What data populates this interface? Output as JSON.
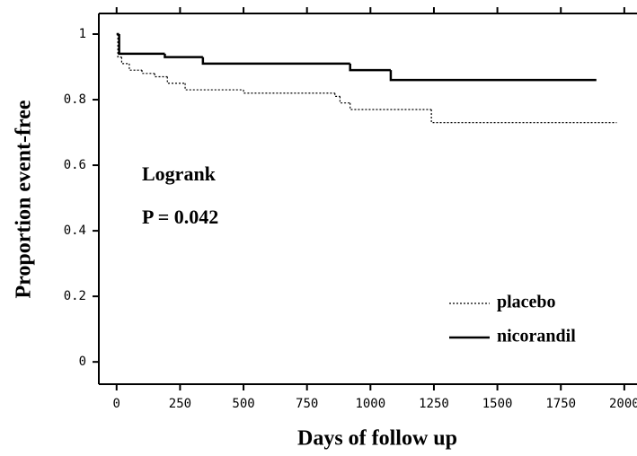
{
  "chart_data": {
    "type": "step",
    "annotations": [
      "Logrank",
      "P = 0.042"
    ],
    "x_label": "Days of follow up",
    "y_label": "Proportion event-free",
    "xlim": [
      -70,
      2050
    ],
    "ylim": [
      -0.068,
      1.063
    ],
    "xticks": [
      0,
      250,
      500,
      750,
      1000,
      1250,
      1500,
      1750,
      2000
    ],
    "yticks": [
      0,
      0.2,
      0.4,
      0.6,
      0.8,
      1
    ],
    "legend": "lower right",
    "series": [
      {
        "name": "placebo",
        "color": "#000000",
        "dashed": true,
        "x": [
          0,
          5,
          20,
          50,
          100,
          150,
          200,
          270,
          500,
          860,
          880,
          920,
          1240,
          1970
        ],
        "values": [
          1,
          0.93,
          0.91,
          0.89,
          0.88,
          0.87,
          0.85,
          0.83,
          0.82,
          0.81,
          0.79,
          0.77,
          0.73,
          0.73
        ]
      },
      {
        "name": "nicorandil",
        "color": "#000000",
        "dashed": false,
        "x": [
          0,
          10,
          190,
          340,
          920,
          1080,
          1890
        ],
        "values": [
          1,
          0.94,
          0.93,
          0.91,
          0.89,
          0.86,
          0.86
        ]
      }
    ]
  }
}
